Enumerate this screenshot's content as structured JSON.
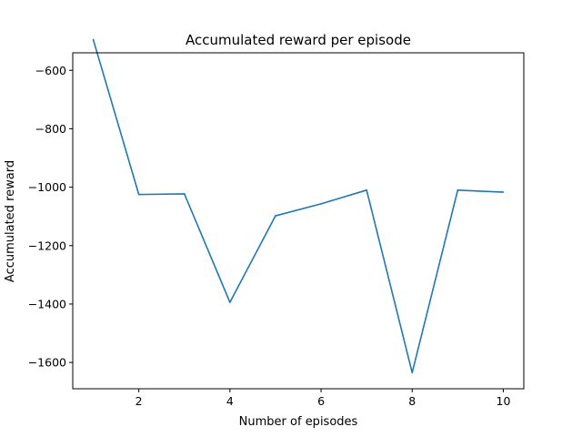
{
  "chart_data": {
    "type": "line",
    "title": "Accumulated reward per episode",
    "xlabel": "Number of episodes",
    "ylabel": "Accumulated reward",
    "xlim": [
      0.55,
      10.45
    ],
    "ylim": [
      -1690,
      -540
    ],
    "xticks": [
      2,
      4,
      6,
      8,
      10
    ],
    "xtick_labels": [
      "2",
      "4",
      "6",
      "8",
      "10"
    ],
    "yticks": [
      -1600,
      -1400,
      -1200,
      -1000,
      -800,
      -600
    ],
    "ytick_labels": [
      "−1600",
      "−1400",
      "−1200",
      "−1000",
      "−800",
      "−600"
    ],
    "grid": false,
    "series": [
      {
        "name": "Accumulated reward",
        "color": "#1f77b4",
        "x": [
          1,
          2,
          3,
          4,
          5,
          6,
          7,
          8,
          9,
          10
        ],
        "values": [
          -495,
          -1025,
          -1023,
          -1394,
          -1098,
          -1057,
          -1010,
          -1635,
          -1010,
          -1017
        ]
      }
    ]
  }
}
